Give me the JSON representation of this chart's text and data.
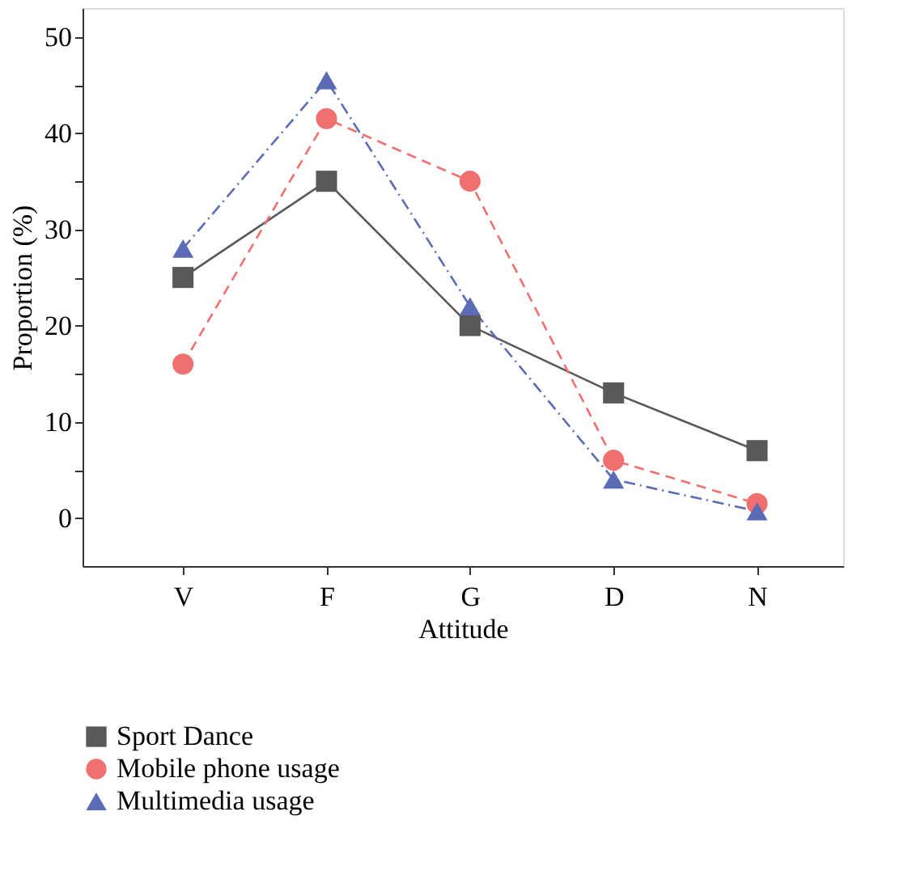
{
  "chart_data": {
    "type": "line",
    "xlabel": "Attitude",
    "ylabel": "Proportion (%)",
    "categories": [
      "V",
      "F",
      "G",
      "D",
      "N"
    ],
    "series": [
      {
        "name": "Sport Dance",
        "color": "#595959",
        "marker": "square",
        "line_style": "solid",
        "values": [
          25,
          35,
          20,
          13,
          7
        ]
      },
      {
        "name": "Mobile phone usage",
        "color": "#f07070",
        "marker": "circle",
        "line_style": "dashed",
        "values": [
          16,
          41.5,
          35,
          6,
          1.5
        ]
      },
      {
        "name": "Multimedia usage",
        "color": "#5b6bb5",
        "marker": "triangle",
        "line_style": "dashdot",
        "values": [
          28,
          45.5,
          22,
          4,
          0.7
        ]
      }
    ],
    "ylim": [
      -5,
      53
    ],
    "yticks": [
      0,
      {
        "value": 5,
        "label": null
      },
      10,
      {
        "value": 15,
        "label": null
      },
      20,
      {
        "value": 25,
        "label": null
      },
      30,
      {
        "value": 35,
        "label": null
      },
      40,
      {
        "value": 45,
        "label": null
      },
      50
    ],
    "grid": false,
    "legend": "bottom left"
  }
}
